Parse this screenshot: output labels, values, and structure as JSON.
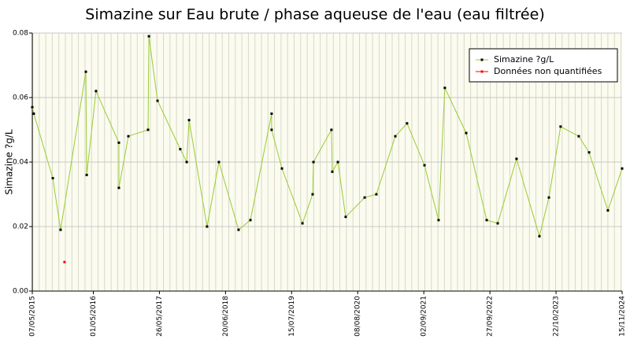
{
  "chart_data": {
    "type": "line",
    "title": "Simazine sur Eau brute / phase aqueuse de l'eau (eau filtrée)",
    "y_label": "Simazine ?g/L",
    "xlim": [
      "07/05/2015",
      "15/11/2024"
    ],
    "xticks": [
      "07/05/2015",
      "01/05/2016",
      "26/05/2017",
      "20/06/2018",
      "15/07/2019",
      "08/08/2020",
      "02/09/2021",
      "27/09/2022",
      "22/10/2023",
      "15/11/2024"
    ],
    "ylim": [
      0,
      0.08
    ],
    "yticks": [
      {
        "value": 0,
        "label": "0.00"
      },
      0.02,
      0.04,
      0.06,
      0.08
    ],
    "grid": true,
    "legend": "top-right",
    "series": [
      {
        "name": "Simazine ?g/L",
        "color": "#99cc33",
        "marker_color": "#000000",
        "x": [
          "07/05/2015",
          "16/05/2015",
          "05/09/2015",
          "21/10/2015",
          "18/03/2016",
          "23/03/2016",
          "17/05/2016",
          "29/09/2016",
          "29/09/2016",
          "24/11/2016",
          "20/03/2017",
          "25/03/2017",
          "15/05/2017",
          "26/09/2017",
          "03/11/2017",
          "17/11/2017",
          "03/03/2018",
          "12/05/2018",
          "05/09/2018",
          "14/11/2018",
          "19/03/2019",
          "19/03/2019",
          "19/05/2019",
          "17/09/2019",
          "16/11/2019",
          "21/11/2019",
          "06/03/2020",
          "11/03/2020",
          "13/04/2020",
          "29/05/2020",
          "18/09/2020",
          "26/11/2020",
          "18/03/2021",
          "26/05/2021",
          "06/09/2021",
          "28/11/2021",
          "04/01/2022",
          "10/05/2022",
          "08/09/2022",
          "12/11/2022",
          "03/03/2023",
          "16/07/2023",
          "10/09/2023",
          "18/11/2023",
          "04/03/2024",
          "04/05/2024",
          "23/08/2024",
          "15/11/2024"
        ],
        "values": [
          0.057,
          0.055,
          0.035,
          0.019,
          0.068,
          0.036,
          0.062,
          0.046,
          0.032,
          0.048,
          0.05,
          0.079,
          0.059,
          0.044,
          0.04,
          0.053,
          0.02,
          0.04,
          0.019,
          0.022,
          0.055,
          0.05,
          0.038,
          0.021,
          0.03,
          0.04,
          0.05,
          0.037,
          0.04,
          0.023,
          0.029,
          0.03,
          0.048,
          0.052,
          0.039,
          0.022,
          0.063,
          0.049,
          0.022,
          0.021,
          0.041,
          0.017,
          0.029,
          0.051,
          0.048,
          0.043,
          0.025,
          0.038
        ]
      },
      {
        "name": "Données non quantifiées",
        "color": "#ff0000",
        "marker_color": "#ff0000",
        "x": [
          "13/11/2015"
        ],
        "values": [
          0.009
        ]
      }
    ]
  }
}
